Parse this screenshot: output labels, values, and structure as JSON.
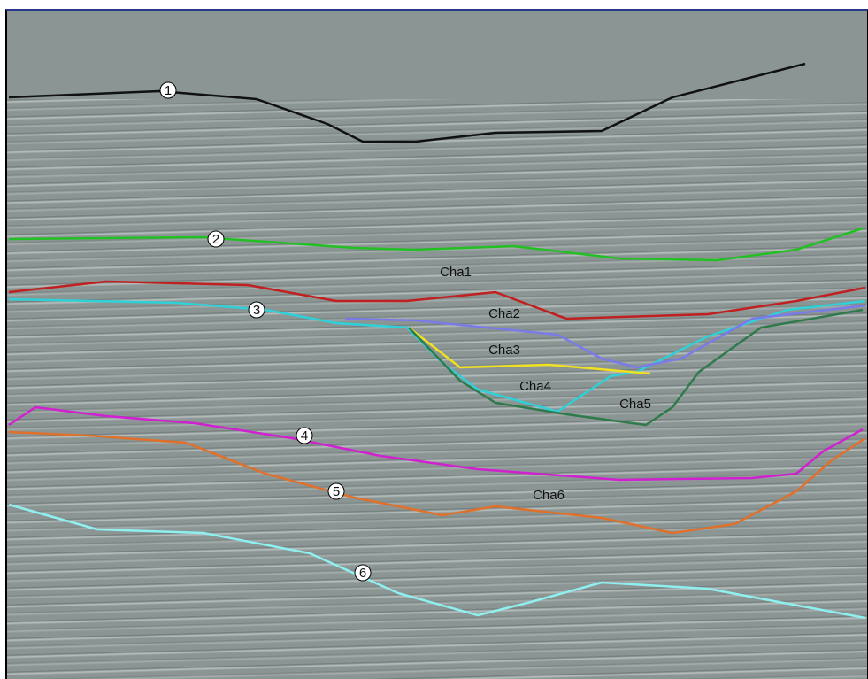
{
  "horizons": [
    {
      "label": "1"
    },
    {
      "label": "2"
    },
    {
      "label": "3"
    },
    {
      "label": "4"
    },
    {
      "label": "5"
    },
    {
      "label": "6"
    }
  ],
  "channels": [
    {
      "label": "Cha1"
    },
    {
      "label": "Cha2"
    },
    {
      "label": "Cha3"
    },
    {
      "label": "Cha4"
    },
    {
      "label": "Cha5"
    },
    {
      "label": "Cha6"
    }
  ]
}
